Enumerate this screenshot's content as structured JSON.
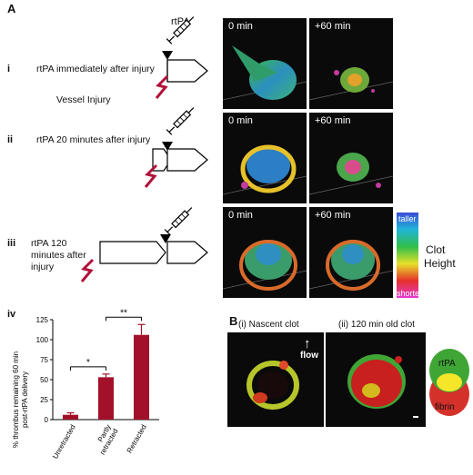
{
  "panel_A": {
    "letter": "A",
    "rtpa_label": "rtPA",
    "rows": [
      {
        "roman": "i",
        "condition": "rtPA immediately after injury",
        "time_left": "0 min",
        "time_right": "+60 min"
      },
      {
        "roman": "ii",
        "condition": "rtPA 20 minutes after injury",
        "time_left": "0 min",
        "time_right": "+60 min"
      },
      {
        "roman": "iii",
        "condition_line1": "rtPA 120",
        "condition_line2": "minutes after",
        "condition_line3": "injury",
        "time_left": "0 min",
        "time_right": "+60 min"
      }
    ],
    "vessel_injury_label": "Vessel Injury",
    "colorbar": {
      "top_label": "taller",
      "bottom_label": "shorter",
      "title_line1": "Clot",
      "title_line2": "Height"
    }
  },
  "panel_iv": {
    "roman": "iv",
    "chart_data": {
      "type": "bar",
      "categories": [
        "Unretracted",
        "Partly retracted",
        "Retracted"
      ],
      "category_lines": [
        [
          "Unretracted"
        ],
        [
          "Partly",
          "retracted"
        ],
        [
          "Retracted"
        ]
      ],
      "values": [
        6,
        53,
        106
      ],
      "errors": [
        2.5,
        4,
        13
      ],
      "ylabel_line1": "% thrombus remaining 60 min",
      "ylabel_line2": "post-rtPA delivery",
      "ylim": [
        0,
        125
      ],
      "yticks": [
        "0",
        "25",
        "50",
        "75",
        "100",
        "125"
      ],
      "significance": [
        {
          "from": 0,
          "to": 1,
          "label": "*"
        },
        {
          "from": 1,
          "to": 2,
          "label": "**"
        }
      ],
      "bar_color": "#a3102a"
    }
  },
  "panel_B": {
    "letter": "B",
    "left_title": "(i) Nascent clot",
    "right_title": "(ii) 120 min old clot",
    "flow_label": "flow",
    "venn": {
      "top_label": "rtPA",
      "bottom_label": "fibrin",
      "top_color": "#3fa535",
      "bottom_color": "#d5312b",
      "overlap_color": "#f5e62a"
    }
  }
}
